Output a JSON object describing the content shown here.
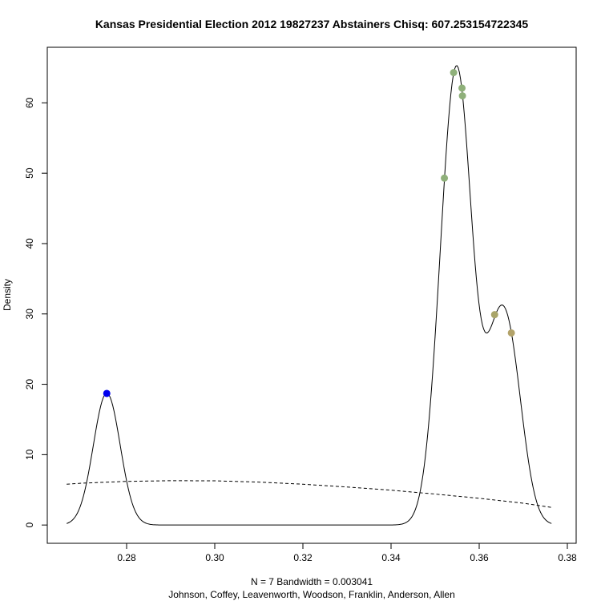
{
  "chart_data": {
    "type": "line",
    "title": "Kansas Presidential Election 2012 19827237 Abstainers Chisq: 607.253154722345",
    "ylabel": "Density",
    "xlabel_line1": "N = 7   Bandwidth = 0.003041",
    "xlabel_line2": "Johnson, Coffey, Leavenworth, Woodson, Franklin, Anderson, Allen",
    "xlim": [
      0.262,
      0.382
    ],
    "ylim": [
      -2.6,
      67.9
    ],
    "x_ticks": [
      0.28,
      0.3,
      0.32,
      0.34,
      0.36,
      0.38
    ],
    "x_tick_labels": [
      "0.28",
      "0.30",
      "0.32",
      "0.34",
      "0.36",
      "0.38"
    ],
    "y_ticks": [
      0,
      10,
      20,
      30,
      40,
      50,
      60
    ],
    "y_tick_labels": [
      "0",
      "10",
      "20",
      "30",
      "40",
      "50",
      "60"
    ],
    "bandwidth": 0.003041,
    "n": 7,
    "grid": false,
    "series": [
      {
        "style": "solid",
        "kind": "kde",
        "x_range": [
          0.2664,
          0.3764
        ]
      },
      {
        "style": "dashed",
        "kind": "normal",
        "x": [
          0.2664,
          0.27,
          0.28,
          0.29,
          0.3,
          0.31,
          0.32,
          0.33,
          0.34,
          0.35,
          0.36,
          0.37,
          0.3764
        ],
        "y": [
          5.8,
          5.95,
          6.2,
          6.3,
          6.28,
          6.1,
          5.8,
          5.4,
          4.95,
          4.4,
          3.8,
          3.1,
          2.5
        ]
      }
    ],
    "points": [
      {
        "x": 0.2755,
        "y": 18.7,
        "color": "#0000ee"
      },
      {
        "x": 0.3521,
        "y": 49.3,
        "color": "#8fb07a"
      },
      {
        "x": 0.3542,
        "y": 64.3,
        "color": "#8fb07a"
      },
      {
        "x": 0.3561,
        "y": 62.1,
        "color": "#8fb07a"
      },
      {
        "x": 0.3562,
        "y": 61.0,
        "color": "#8fb07a"
      },
      {
        "x": 0.3635,
        "y": 29.9,
        "color": "#a9a56a"
      },
      {
        "x": 0.3673,
        "y": 27.3,
        "color": "#b3a36a"
      }
    ]
  }
}
